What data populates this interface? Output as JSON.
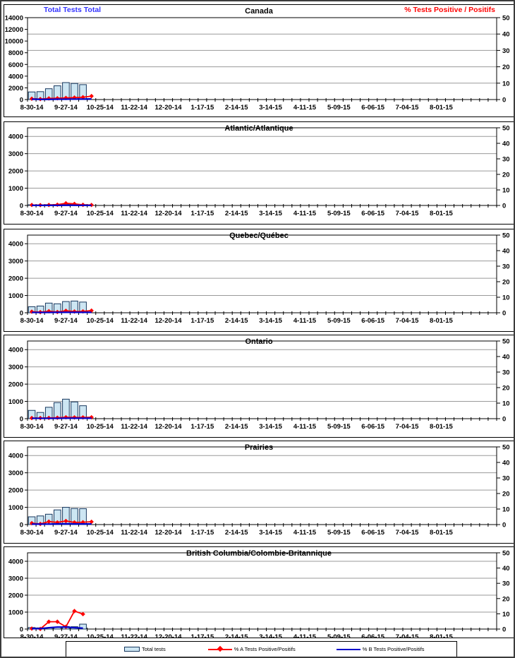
{
  "header": {
    "left_label": "Total Tests Total",
    "right_label": "% Tests Positive / Positifs",
    "left_color": "#3333FF",
    "right_color": "#FF0000"
  },
  "legend": {
    "items": [
      {
        "label": "Total tests",
        "swatch": "bar",
        "color": "#CDE6F3"
      },
      {
        "label": "% A Tests Positive/Positifs",
        "swatch": "line-diamond",
        "color": "#FF0000"
      },
      {
        "label": "% B Tests Positive/Positifs",
        "swatch": "line",
        "color": "#0000CC"
      }
    ]
  },
  "colors": {
    "bar_fill": "#CDE6F3",
    "bar_border": "#17375E",
    "line_a": "#FF0000",
    "line_b": "#0000CC",
    "gridline": "#9a9a9a",
    "axis": "#000000"
  },
  "axis": {
    "weeks_total": 55,
    "label_interval": 4,
    "x_tick_labels": [
      "8-30-14",
      "9-27-14",
      "10-25-14",
      "11-22-14",
      "12-20-14",
      "1-17-15",
      "2-14-15",
      "3-14-15",
      "4-11-15",
      "5-09-15",
      "6-06-15",
      "7-04-15",
      "8-01-15"
    ],
    "right_ticks": [
      0,
      10,
      20,
      30,
      40,
      50
    ],
    "right_axis_max": 50
  },
  "chart_data": [
    {
      "type": "bar+line",
      "title": "Canada",
      "left_ticks": [
        0,
        2000,
        4000,
        6000,
        8000,
        10000,
        12000,
        14000
      ],
      "left_axis_max": 14000,
      "gridlines": {
        "axis": "right",
        "values": [
          10,
          20,
          30,
          40
        ]
      },
      "series": [
        {
          "name": "Total tests",
          "type": "bar",
          "axis": "left",
          "values": [
            1300,
            1350,
            1850,
            2350,
            2900,
            2750,
            2550
          ]
        },
        {
          "name": "% A Tests Positive/Positifs",
          "type": "line",
          "axis": "right",
          "marker": "diamond",
          "values": [
            0.5,
            0.3,
            0.7,
            0.8,
            1.0,
            1.2,
            1.4,
            2.1
          ]
        },
        {
          "name": "% B Tests Positive/Positifs",
          "type": "line",
          "axis": "right",
          "values": [
            0.2,
            0.1,
            0.1,
            0.2,
            0.2,
            0.3,
            0.3,
            0.4
          ]
        }
      ]
    },
    {
      "type": "bar+line",
      "title": "Atlantic/Atlantique",
      "left_ticks": [
        0,
        1000,
        2000,
        3000,
        4000
      ],
      "left_axis_max": 4500,
      "gridlines": {
        "axis": "left",
        "values": [
          1000,
          2000,
          3000,
          4000
        ]
      },
      "series": [
        {
          "name": "Total tests",
          "type": "bar",
          "axis": "left",
          "values": [
            40,
            40,
            50,
            60,
            70,
            60,
            50
          ]
        },
        {
          "name": "% A Tests Positive/Positifs",
          "type": "line",
          "axis": "right",
          "marker": "diamond",
          "values": [
            0.3,
            0.2,
            0.3,
            0.5,
            1.4,
            1.0,
            0.4,
            0.3
          ]
        },
        {
          "name": "% B Tests Positive/Positifs",
          "type": "line",
          "axis": "right",
          "values": [
            0.05,
            0.05,
            0.05,
            0.05,
            0.1,
            0.1,
            0.05,
            0.05
          ]
        }
      ]
    },
    {
      "type": "bar+line",
      "title": "Quebec/Québec",
      "left_ticks": [
        0,
        1000,
        2000,
        3000,
        4000
      ],
      "left_axis_max": 4500,
      "gridlines": {
        "axis": "left",
        "values": [
          1000,
          2000,
          3000,
          4000
        ]
      },
      "series": [
        {
          "name": "Total tests",
          "type": "bar",
          "axis": "left",
          "values": [
            350,
            390,
            560,
            520,
            650,
            680,
            620
          ]
        },
        {
          "name": "% A Tests Positive/Positifs",
          "type": "line",
          "axis": "right",
          "marker": "diamond",
          "values": [
            0.7,
            0.4,
            1.0,
            0.5,
            1.3,
            0.8,
            0.9,
            1.4
          ]
        },
        {
          "name": "% B Tests Positive/Positifs",
          "type": "line",
          "axis": "right",
          "values": [
            0.2,
            0.2,
            0.2,
            0.3,
            0.3,
            0.3,
            0.3,
            0.3
          ]
        }
      ]
    },
    {
      "type": "bar+line",
      "title": "Ontario",
      "left_ticks": [
        0,
        1000,
        2000,
        3000,
        4000
      ],
      "left_axis_max": 4500,
      "gridlines": {
        "axis": "left",
        "values": [
          1000,
          2000,
          3000,
          4000
        ]
      },
      "series": [
        {
          "name": "Total tests",
          "type": "bar",
          "axis": "left",
          "values": [
            480,
            360,
            660,
            930,
            1130,
            970,
            750
          ]
        },
        {
          "name": "% A Tests Positive/Positifs",
          "type": "line",
          "axis": "right",
          "marker": "diamond",
          "values": [
            0.4,
            0.4,
            0.5,
            0.6,
            0.9,
            0.8,
            0.8,
            0.9
          ]
        },
        {
          "name": "% B Tests Positive/Positifs",
          "type": "line",
          "axis": "right",
          "values": [
            0.2,
            0.2,
            0.2,
            0.2,
            0.3,
            0.3,
            0.3,
            0.3
          ]
        }
      ]
    },
    {
      "type": "bar+line",
      "title": "Prairies",
      "left_ticks": [
        0,
        1000,
        2000,
        3000,
        4000
      ],
      "left_axis_max": 4500,
      "gridlines": {
        "axis": "left",
        "values": [
          1000,
          2000,
          3000,
          4000
        ]
      },
      "series": [
        {
          "name": "Total tests",
          "type": "bar",
          "axis": "left",
          "values": [
            450,
            500,
            600,
            850,
            1000,
            930,
            920
          ]
        },
        {
          "name": "% A Tests Positive/Positifs",
          "type": "line",
          "axis": "right",
          "marker": "diamond",
          "values": [
            0.9,
            0.4,
            1.9,
            1.4,
            2.3,
            1.4,
            1.5,
            1.8
          ]
        },
        {
          "name": "% B Tests Positive/Positifs",
          "type": "line",
          "axis": "right",
          "values": [
            0.3,
            0.3,
            0.3,
            0.4,
            0.5,
            0.4,
            0.4,
            0.4
          ]
        }
      ]
    },
    {
      "type": "bar+line",
      "title": "British Columbia/Colombie-Britannique",
      "left_ticks": [
        0,
        1000,
        2000,
        3000,
        4000
      ],
      "left_axis_max": 4500,
      "gridlines": {
        "axis": "left",
        "values": [
          1000,
          2000,
          3000,
          4000
        ]
      },
      "series": [
        {
          "name": "Total tests",
          "type": "bar",
          "axis": "left",
          "values": [
            90,
            70,
            80,
            120,
            150,
            140,
            290
          ]
        },
        {
          "name": "% A Tests Positive/Positifs",
          "type": "line",
          "axis": "right",
          "marker": "diamond",
          "values": [
            0.3,
            0.1,
            4.8,
            4.8,
            1.5,
            11.8,
            9.8
          ]
        },
        {
          "name": "% B Tests Positive/Positifs",
          "type": "line",
          "axis": "right",
          "values": [
            0.3,
            0.3,
            0.9,
            1.3,
            1.3,
            0.9,
            0.6
          ]
        }
      ]
    }
  ]
}
